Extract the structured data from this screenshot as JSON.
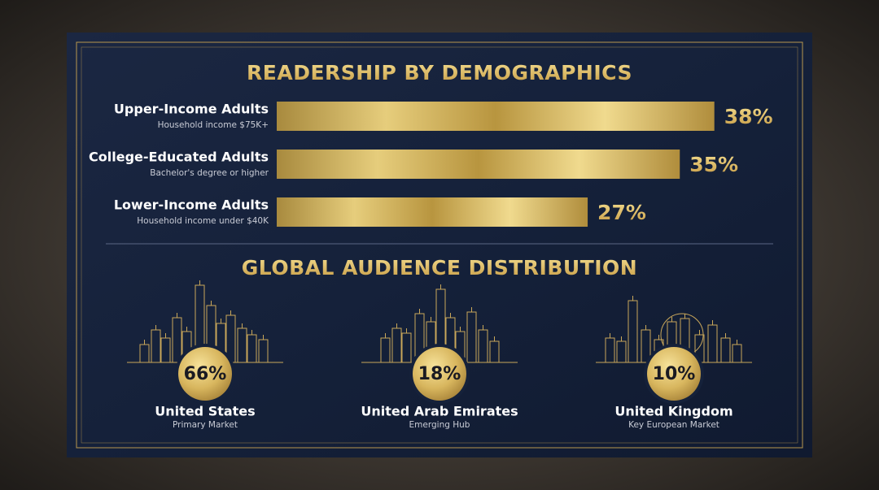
{
  "chart_data": [
    {
      "type": "bar",
      "title": "READERSHIP BY DEMOGRAPHICS",
      "categories": [
        "Upper-Income Adults",
        "College-Educated Adults",
        "Lower-Income Adults"
      ],
      "subtitles": [
        "Household income $75K+",
        "Bachelor's degree or higher",
        "Household income under $40K"
      ],
      "values": [
        38,
        35,
        27
      ],
      "value_labels": [
        "38%",
        "35%",
        "27%"
      ]
    },
    {
      "type": "stat",
      "title": "GLOBAL AUDIENCE DISTRIBUTION",
      "categories": [
        "United States",
        "United Arab Emirates",
        "United Kingdom"
      ],
      "subtitles": [
        "Primary Market",
        "Emerging Hub",
        "Key European Market"
      ],
      "values": [
        66,
        18,
        10
      ],
      "value_labels": [
        "66%",
        "18%",
        "10%"
      ]
    }
  ]
}
